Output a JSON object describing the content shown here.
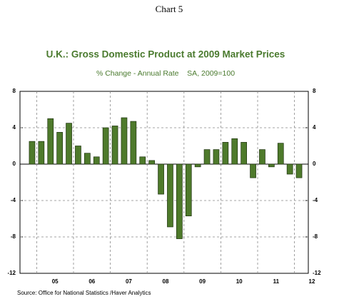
{
  "chart_data": {
    "type": "bar",
    "header": "Chart 5",
    "title": "U.K.: Gross Domestic Product at 2009 Market Prices",
    "subtitle": "% Change - Annual Rate    SA, 2009=100",
    "source": "Source:  Office for National Statistics /Haver Analytics",
    "x_labels": [
      "05",
      "06",
      "07",
      "08",
      "09",
      "10",
      "11",
      "12"
    ],
    "values": [
      2.5,
      2.5,
      5.0,
      3.5,
      4.5,
      2.0,
      1.2,
      0.8,
      4.0,
      4.2,
      5.1,
      4.7,
      0.8,
      0.4,
      -3.3,
      -6.9,
      -8.2,
      -5.7,
      -0.3,
      1.6,
      1.6,
      2.4,
      2.8,
      2.4,
      -1.5,
      1.6,
      -0.3,
      2.3,
      -1.1,
      -1.5
    ],
    "color": "#4e7a2b",
    "ylim": [
      -12,
      8
    ],
    "yticks": [
      -12,
      -8,
      -4,
      0,
      4,
      8
    ],
    "grid": true
  }
}
